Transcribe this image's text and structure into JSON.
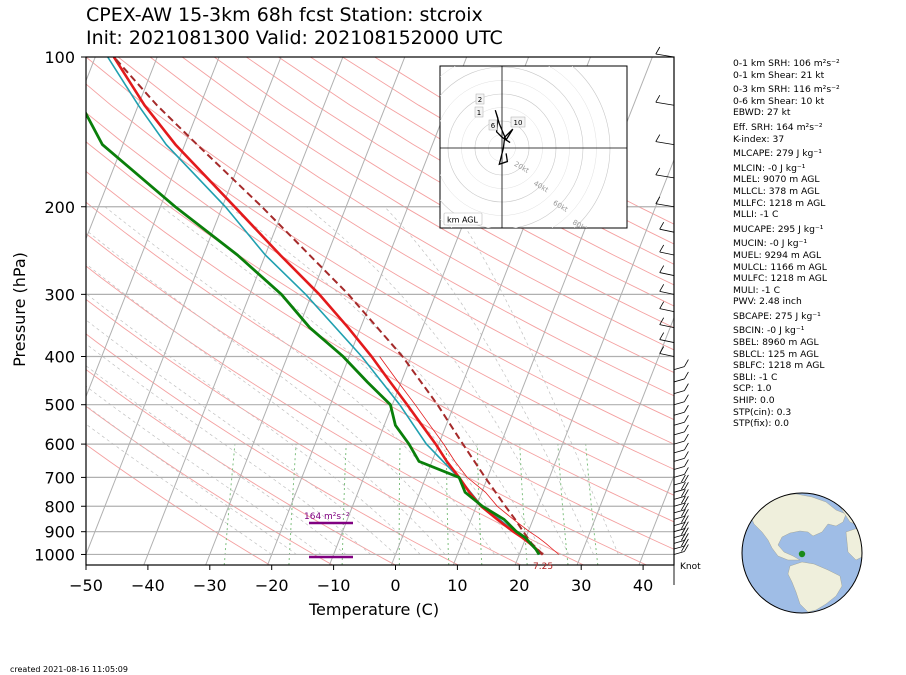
{
  "header": {
    "line1": "CPEX-AW 15-3km  68h fcst  Station: stcroix",
    "line2": "Init: 2021081300  Valid: 202108152000 UTC"
  },
  "axes": {
    "ylabel": "Pressure (hPa)",
    "xlabel": "Temperature (C)",
    "yticks": [
      "100",
      "200",
      "300",
      "400",
      "500",
      "600",
      "700",
      "800",
      "900",
      "1000"
    ],
    "xticks": [
      "−50",
      "−40",
      "−30",
      "−20",
      "−10",
      "0",
      "10",
      "20",
      "30",
      "40"
    ]
  },
  "annotations": {
    "srh_label": "164 m²s⁻²",
    "sfc_label": "7.25",
    "knot_label": "Knot",
    "created": "created 2021-08-16 11:05:09"
  },
  "hodograph": {
    "ring_labels": [
      "20kt",
      "40kt",
      "60kt",
      "80kt"
    ],
    "height_labels": [
      "2",
      "1",
      "6",
      "10"
    ],
    "unit_label": "km AGL"
  },
  "params": [
    "0-1 km SRH: 106 m²s⁻²",
    "0-1 km Shear: 21 kt",
    "0-3 km SRH: 116 m²s⁻²",
    "0-6 km Shear: 10 kt",
    "EBWD: 27 kt",
    "Eff. SRH: 164 m²s⁻²",
    "K-index: 37",
    "MLCAPE: 279 J kg⁻¹",
    "MLCIN: -0 J kg⁻¹",
    "MLEL: 9070 m AGL",
    "MLLCL: 378 m AGL",
    "MLLFC: 1218 m AGL",
    "MLLI: -1 C",
    "MUCAPE: 295 J kg⁻¹",
    "MUCIN: -0 J kg⁻¹",
    "MUEL: 9294 m AGL",
    "MULCL: 1166 m AGL",
    "MULFC: 1218 m AGL",
    "MULI: -1 C",
    "PWV: 2.48 inch",
    "SBCAPE: 275 J kg⁻¹",
    "SBCIN: -0 J kg⁻¹",
    "SBEL: 8960 m AGL",
    "SBLCL: 125 m AGL",
    "SBLFC: 1218 m AGL",
    "SBLI: -1 C",
    "SCP: 1.0",
    "SHIP: 0.0",
    "STP(cin): 0.3",
    "STP(fix): 0.0"
  ],
  "colors": {
    "temperature": "#e31a1c",
    "dewpoint": "#0a7f0a",
    "wetbulb": "#20a0b0",
    "parcel": "#a52a2a",
    "srh_bar": "#800080",
    "isobar": "#b0b0b0",
    "dry_adiabat": "#f4a0a0",
    "mixing_ratio": "#80c080",
    "ocean": "#9fbde6",
    "land": "#efefdc"
  },
  "chart_data": {
    "type": "line",
    "subtype": "skew-T log-p",
    "xlabel": "Temperature (C)",
    "ylabel": "Pressure (hPa)",
    "xlim": [
      -50,
      45
    ],
    "ylim": [
      1050,
      100
    ],
    "y_scale": "log",
    "series": [
      {
        "name": "temperature",
        "points": [
          [
            1000,
            23.8
          ],
          [
            975,
            22.4
          ],
          [
            950,
            21.0
          ],
          [
            925,
            19.4
          ],
          [
            900,
            17.6
          ],
          [
            850,
            14.2
          ],
          [
            800,
            10.8
          ],
          [
            750,
            8.0
          ],
          [
            700,
            5.4
          ],
          [
            650,
            2.4
          ],
          [
            600,
            -0.5
          ],
          [
            550,
            -3.9
          ],
          [
            500,
            -7.6
          ],
          [
            450,
            -11.8
          ],
          [
            400,
            -16.4
          ],
          [
            350,
            -22.0
          ],
          [
            300,
            -28.8
          ],
          [
            250,
            -37.6
          ],
          [
            200,
            -48.0
          ],
          [
            150,
            -61.5
          ],
          [
            125,
            -69.0
          ],
          [
            100,
            -77.0
          ]
        ]
      },
      {
        "name": "dewpoint",
        "points": [
          [
            1000,
            23.2
          ],
          [
            975,
            22.3
          ],
          [
            950,
            21.1
          ],
          [
            925,
            19.9
          ],
          [
            900,
            18.1
          ],
          [
            850,
            15.3
          ],
          [
            800,
            11.0
          ],
          [
            750,
            7.3
          ],
          [
            700,
            5.4
          ],
          [
            650,
            -2.1
          ],
          [
            600,
            -4.8
          ],
          [
            550,
            -8.2
          ],
          [
            500,
            -10.3
          ],
          [
            450,
            -15.5
          ],
          [
            400,
            -21.0
          ],
          [
            350,
            -28.2
          ],
          [
            300,
            -34.9
          ],
          [
            250,
            -44.5
          ],
          [
            200,
            -57.6
          ],
          [
            150,
            -73.3
          ],
          [
            125,
            -79.2
          ],
          [
            100,
            -85.8
          ]
        ]
      },
      {
        "name": "wetbulb",
        "points": [
          [
            1000,
            23.4
          ],
          [
            950,
            21.0
          ],
          [
            900,
            17.8
          ],
          [
            850,
            14.6
          ],
          [
            800,
            10.9
          ],
          [
            700,
            5.3
          ],
          [
            600,
            -2.0
          ],
          [
            500,
            -8.8
          ],
          [
            400,
            -18.0
          ],
          [
            300,
            -31.0
          ],
          [
            250,
            -40.0
          ],
          [
            200,
            -49.5
          ],
          [
            150,
            -63.0
          ],
          [
            125,
            -70.0
          ],
          [
            100,
            -78.0
          ]
        ]
      },
      {
        "name": "parcel",
        "points": [
          [
            1000,
            23.8
          ],
          [
            950,
            21.3
          ],
          [
            900,
            19.2
          ],
          [
            850,
            17.1
          ],
          [
            800,
            14.7
          ],
          [
            700,
            9.6
          ],
          [
            600,
            3.9
          ],
          [
            500,
            -2.7
          ],
          [
            400,
            -11.4
          ],
          [
            300,
            -24.1
          ],
          [
            200,
            -43.6
          ],
          [
            150,
            -58.0
          ],
          [
            125,
            -67.0
          ],
          [
            100,
            -77.0
          ]
        ]
      }
    ],
    "effective_inflow_layer": {
      "label": "164 m²s⁻²",
      "bottom_hpa": 1000,
      "top_hpa": 880
    },
    "surface_label": "7.25",
    "hodograph_rings_kt": [
      20,
      40,
      60,
      80
    ],
    "hodograph_points_kt": [
      [
        6,
        4
      ],
      [
        0,
        8
      ],
      [
        -4,
        12
      ],
      [
        -3,
        22
      ],
      [
        -5,
        28
      ],
      [
        -2,
        18
      ],
      [
        3,
        6
      ],
      [
        8,
        14
      ],
      [
        2,
        8
      ],
      [
        1,
        0
      ],
      [
        -2,
        -12
      ],
      [
        4,
        -10
      ],
      [
        3,
        -4
      ]
    ],
    "legend": "none",
    "grid": true
  }
}
